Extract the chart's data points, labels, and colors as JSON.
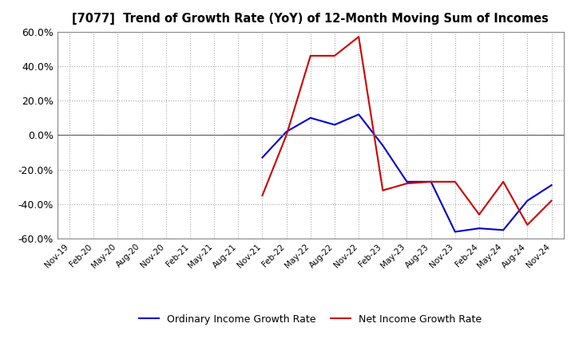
{
  "title": "[7077]  Trend of Growth Rate (YoY) of 12-Month Moving Sum of Incomes",
  "ylim": [
    -0.6,
    0.6
  ],
  "yticks": [
    -0.6,
    -0.4,
    -0.2,
    0.0,
    0.2,
    0.4,
    0.6
  ],
  "background_color": "#ffffff",
  "grid_color": "#aaaaaa",
  "ordinary_color": "#0000cc",
  "net_color": "#cc0000",
  "legend_ordinary": "Ordinary Income Growth Rate",
  "legend_net": "Net Income Growth Rate",
  "x_labels": [
    "Nov-19",
    "Feb-20",
    "May-20",
    "Aug-20",
    "Nov-20",
    "Feb-21",
    "May-21",
    "Aug-21",
    "Nov-21",
    "Feb-22",
    "May-22",
    "Aug-22",
    "Nov-22",
    "Feb-23",
    "May-23",
    "Aug-23",
    "Nov-23",
    "Feb-24",
    "May-24",
    "Aug-24",
    "Nov-24"
  ],
  "ordinary_y": [
    null,
    null,
    null,
    null,
    null,
    null,
    null,
    null,
    -0.13,
    0.02,
    0.1,
    0.06,
    0.12,
    -0.06,
    -0.27,
    -0.27,
    -0.56,
    -0.54,
    -0.55,
    -0.38,
    -0.29
  ],
  "net_y": [
    null,
    null,
    null,
    null,
    null,
    null,
    null,
    null,
    -0.35,
    0.0,
    0.46,
    0.46,
    0.57,
    -0.32,
    -0.28,
    -0.27,
    -0.27,
    -0.46,
    -0.27,
    -0.52,
    -0.38
  ]
}
